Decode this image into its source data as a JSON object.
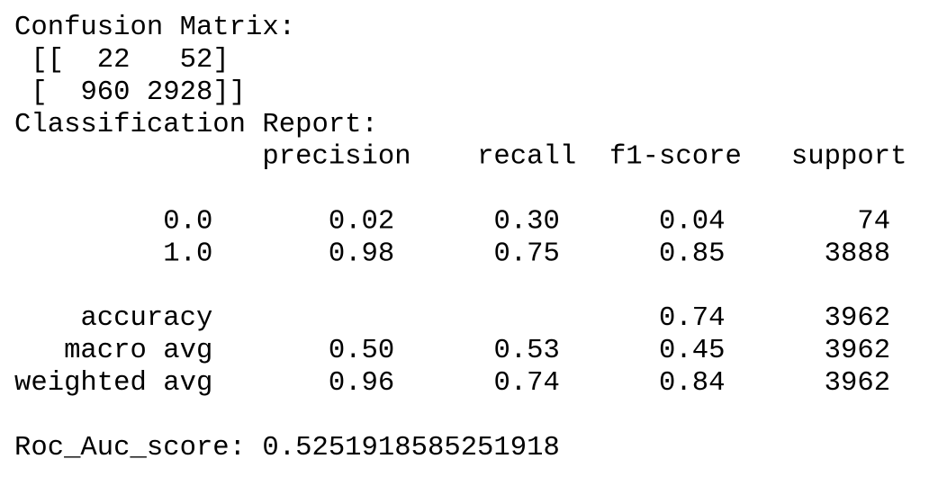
{
  "confusion_matrix": {
    "title": "Confusion Matrix:",
    "rows": [
      {
        "open": "[[",
        "values": [
          22,
          52
        ],
        "close": "]"
      },
      {
        "open": "[",
        "values": [
          960,
          2928
        ],
        "close": "]]"
      }
    ]
  },
  "classification_report": {
    "title": "Classification Report:",
    "columns": [
      "precision",
      "recall",
      "f1-score",
      "support"
    ],
    "rows": [
      {
        "label": "0.0",
        "precision": "0.02",
        "recall": "0.30",
        "f1-score": "0.04",
        "support": 74
      },
      {
        "label": "1.0",
        "precision": "0.98",
        "recall": "0.75",
        "f1-score": "0.85",
        "support": 3888
      },
      {
        "label": "accuracy",
        "f1-score": "0.74",
        "support": 3962
      },
      {
        "label": "macro avg",
        "precision": "0.50",
        "recall": "0.53",
        "f1-score": "0.45",
        "support": 3962
      },
      {
        "label": "weighted avg",
        "precision": "0.96",
        "recall": "0.74",
        "f1-score": "0.84",
        "support": 3962
      }
    ]
  },
  "roc_auc": {
    "label": "Roc_Auc_score:",
    "value": 0.5251918585251918
  }
}
